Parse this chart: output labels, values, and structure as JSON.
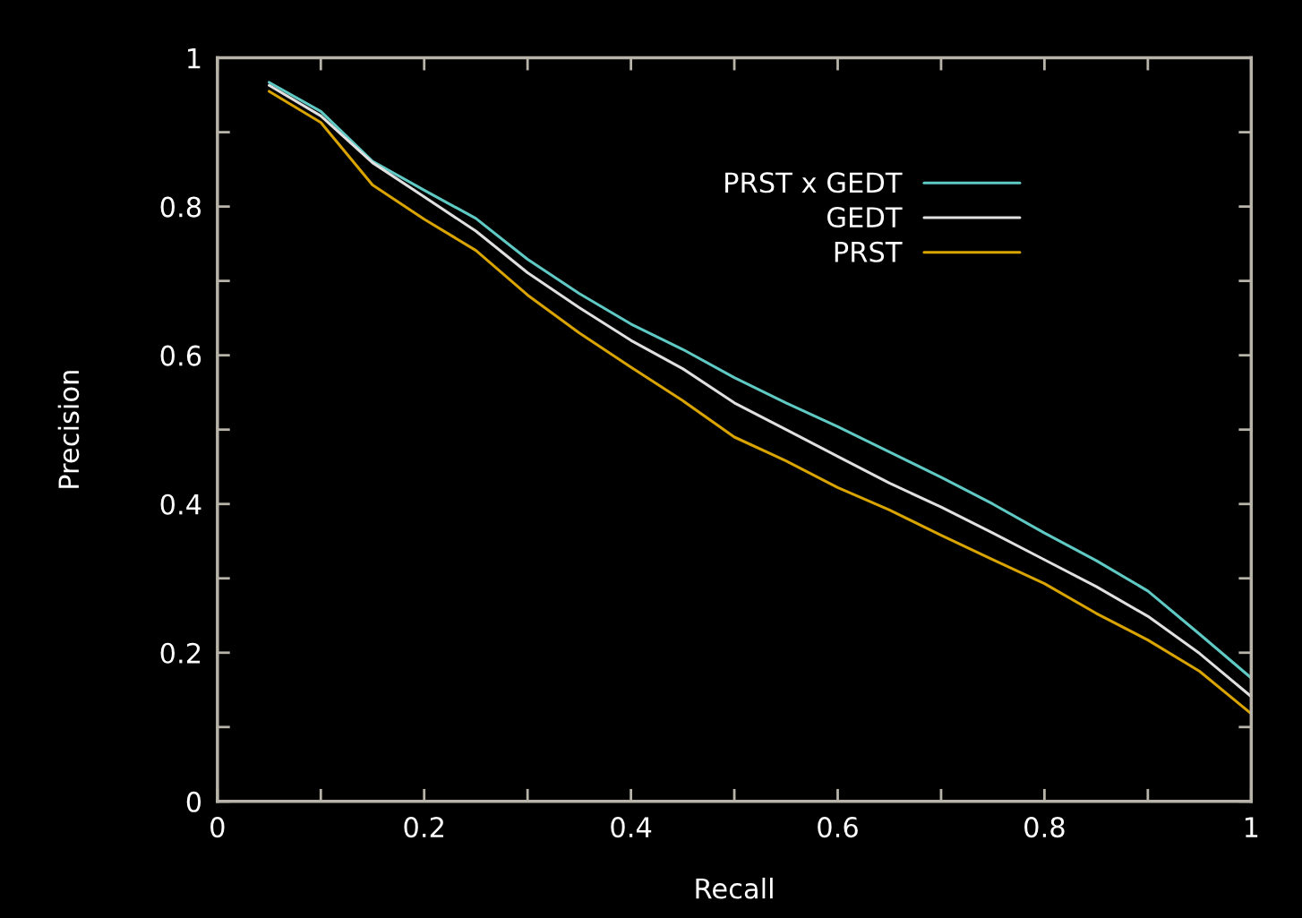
{
  "chart_data": {
    "type": "line",
    "xlabel": "Recall",
    "ylabel": "Precision",
    "x": [
      0.05,
      0.1,
      0.15,
      0.2,
      0.25,
      0.3,
      0.35,
      0.4,
      0.45,
      0.5,
      0.55,
      0.6,
      0.65,
      0.7,
      0.75,
      0.8,
      0.85,
      0.9,
      0.95,
      1.0
    ],
    "series": [
      {
        "name": "PRST x GEDT",
        "color": "#5fc9c4",
        "values": [
          0.967,
          0.928,
          0.861,
          0.822,
          0.784,
          0.729,
          0.683,
          0.642,
          0.608,
          0.57,
          0.536,
          0.504,
          0.47,
          0.436,
          0.4,
          0.361,
          0.324,
          0.283,
          0.225,
          0.166
        ]
      },
      {
        "name": "GEDT",
        "color": "#e0e0e0",
        "values": [
          0.963,
          0.922,
          0.859,
          0.813,
          0.767,
          0.711,
          0.664,
          0.62,
          0.582,
          0.536,
          0.5,
          0.464,
          0.428,
          0.396,
          0.361,
          0.325,
          0.289,
          0.249,
          0.199,
          0.141
        ]
      },
      {
        "name": "PRST",
        "color": "#d9a400",
        "values": [
          0.955,
          0.913,
          0.829,
          0.783,
          0.741,
          0.681,
          0.63,
          0.584,
          0.539,
          0.49,
          0.458,
          0.422,
          0.392,
          0.358,
          0.325,
          0.293,
          0.253,
          0.217,
          0.175,
          0.118
        ]
      }
    ],
    "xlim": [
      0,
      1
    ],
    "ylim": [
      0,
      1
    ],
    "xticks": [
      0,
      {
        "value": 0.1,
        "label": null
      },
      0.2,
      {
        "value": 0.3,
        "label": null
      },
      0.4,
      {
        "value": 0.5,
        "label": null
      },
      0.6,
      {
        "value": 0.7,
        "label": null
      },
      0.8,
      {
        "value": 0.9,
        "label": null
      },
      1
    ],
    "yticks": [
      0,
      {
        "value": 0.1,
        "label": null
      },
      0.2,
      {
        "value": 0.3,
        "label": null
      },
      0.4,
      {
        "value": 0.5,
        "label": null
      },
      0.6,
      {
        "value": 0.7,
        "label": null
      },
      0.8,
      {
        "value": 0.9,
        "label": null
      },
      1
    ],
    "grid": false,
    "legend": "top right",
    "marker": "none",
    "line_style": "solid"
  }
}
